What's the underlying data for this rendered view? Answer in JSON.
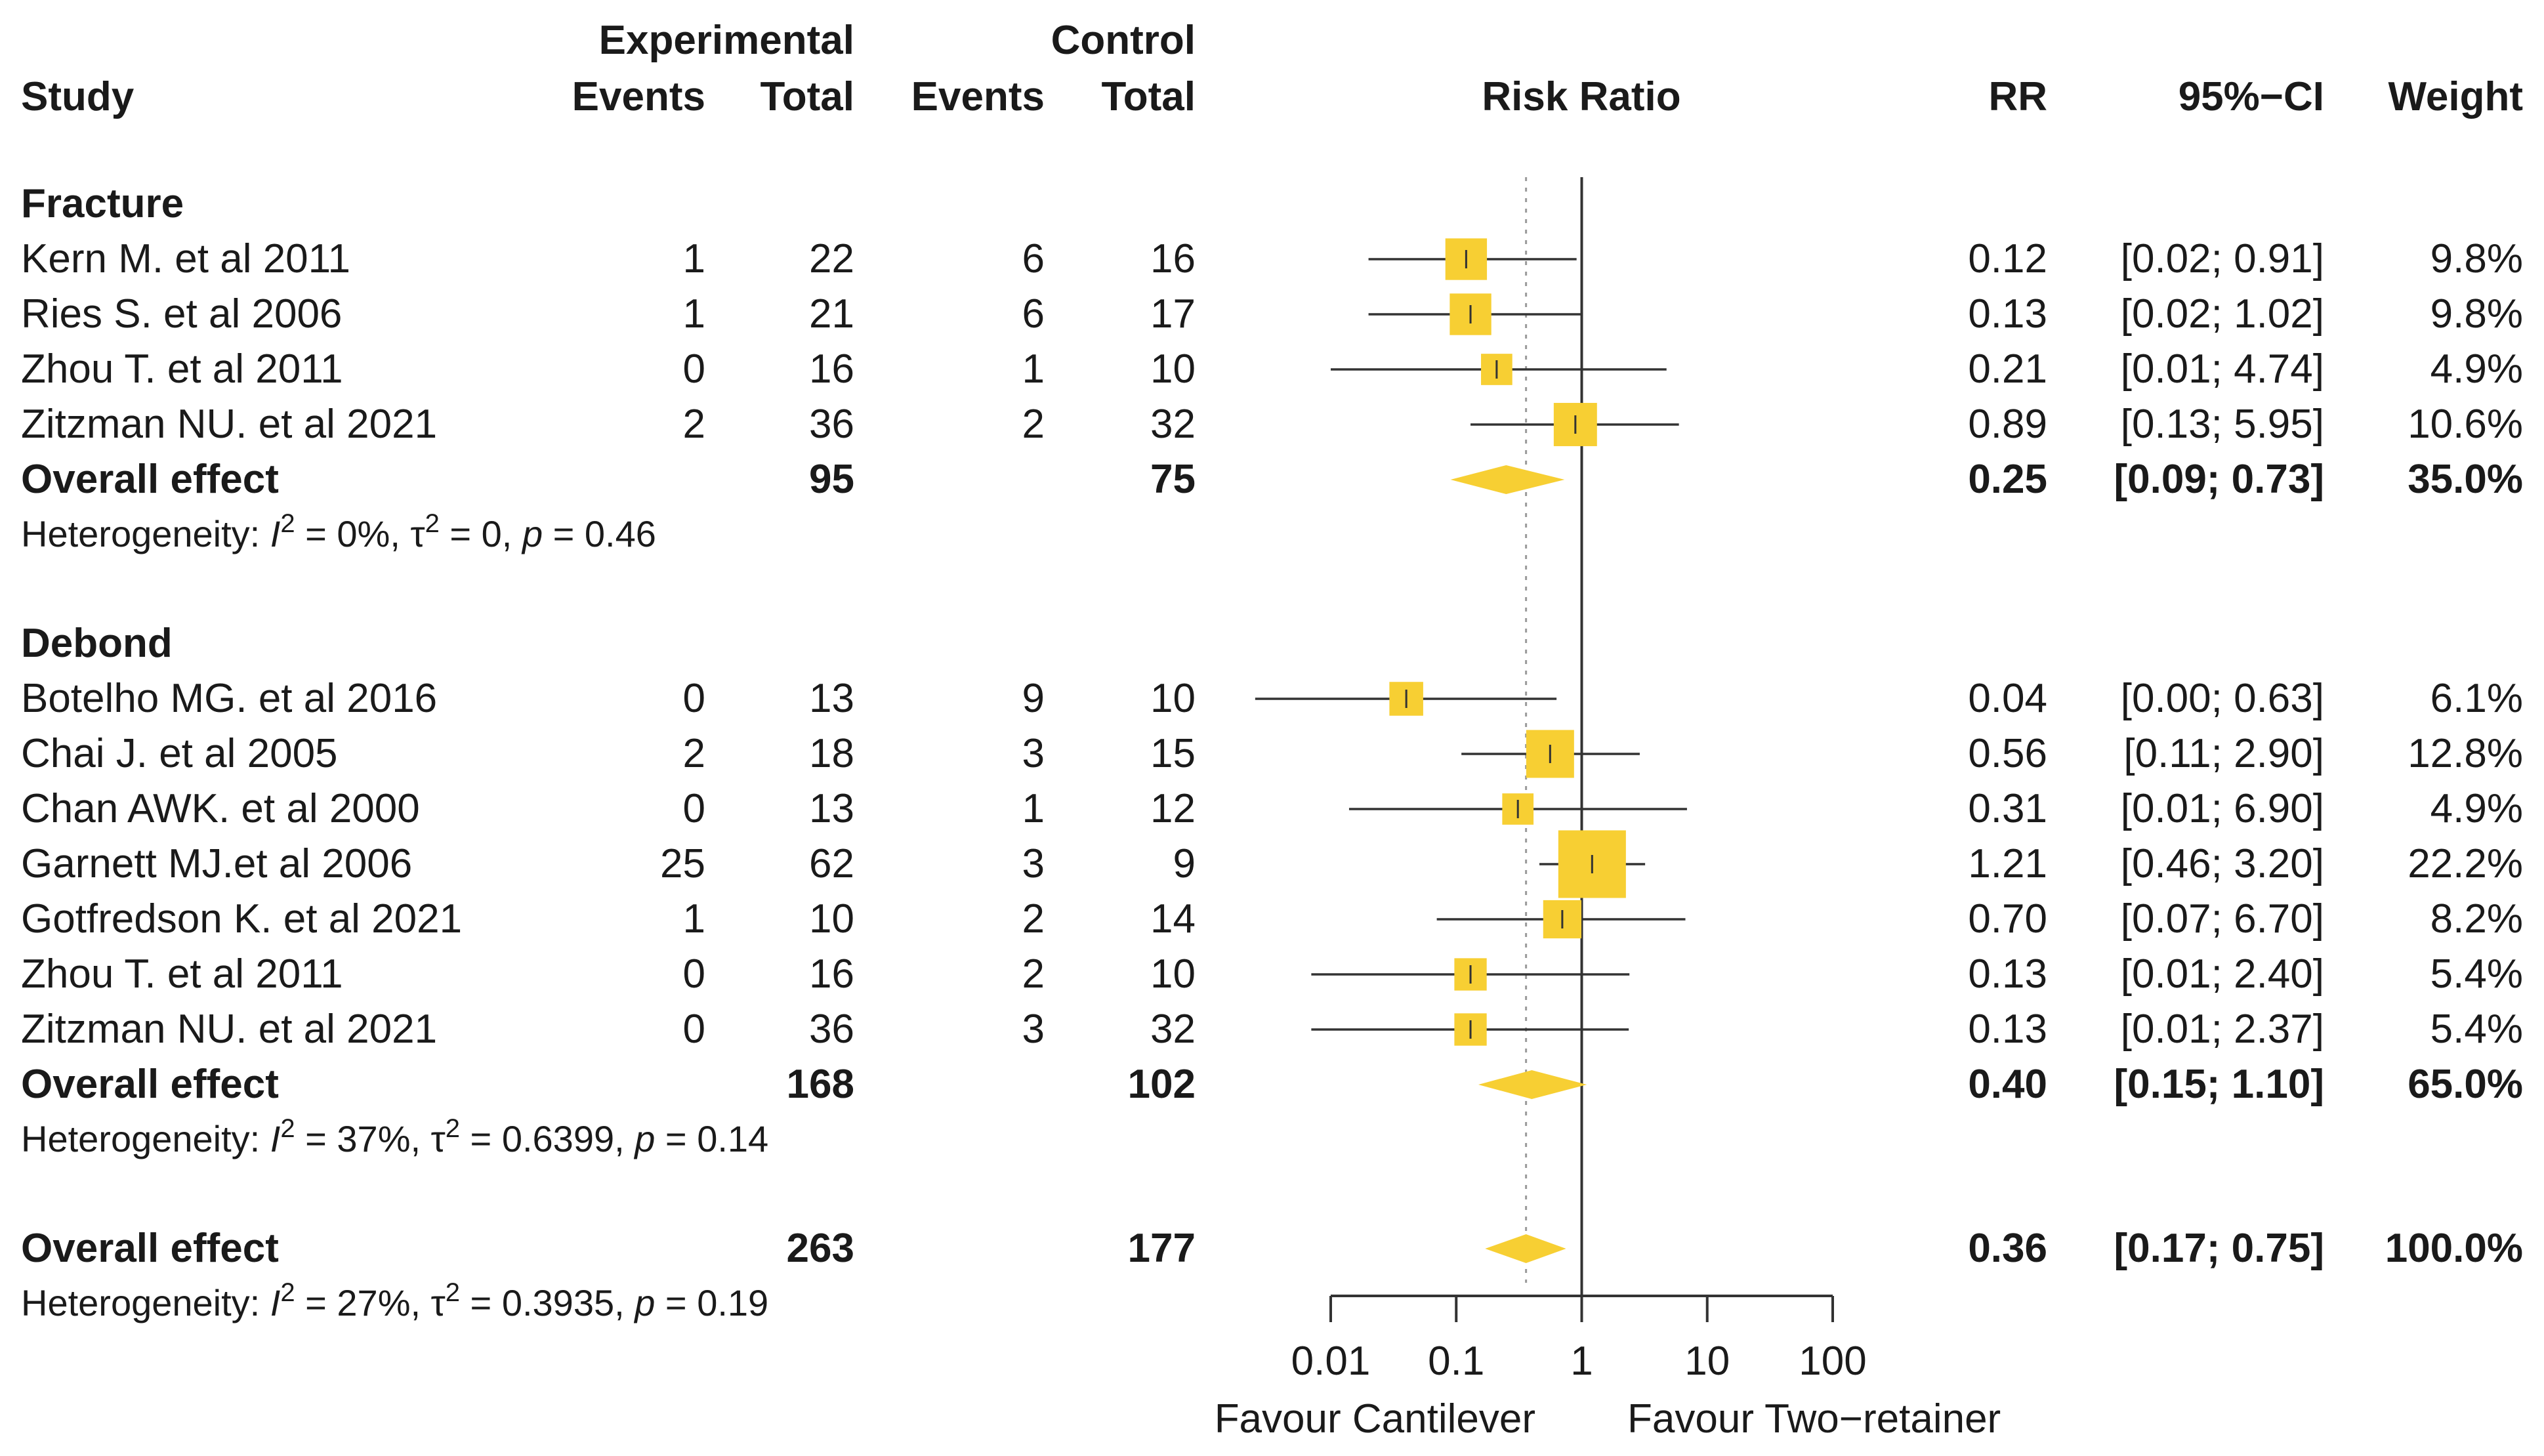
{
  "chart_data": {
    "type": "forest",
    "title": "",
    "xlabel": "Risk Ratio",
    "x_scale": "log",
    "xlim": [
      0.01,
      100
    ],
    "xticks": [
      "0.01",
      "0.1",
      "1",
      "10",
      "100"
    ],
    "null_line": 1,
    "overall_reference_line": 0.36,
    "favour_left": "Favour Cantilever",
    "favour_right": "Favour Two−retainer",
    "headers": {
      "study": "Study",
      "experimental": "Experimental",
      "control": "Control",
      "events": "Events",
      "total": "Total",
      "risk_ratio": "Risk Ratio",
      "rr": "RR",
      "ci": "95%−CI",
      "weight": "Weight"
    },
    "colors": {
      "marker": "#f7cf33",
      "line": "#333333",
      "ref_line": "#9a9a9a"
    },
    "subgroups": [
      {
        "name": "Fracture",
        "studies": [
          {
            "study": "Kern M. et al 2011",
            "e_events": "1",
            "e_total": "22",
            "c_events": "6",
            "c_total": "16",
            "rr": 0.12,
            "lower": 0.02,
            "upper": 0.91,
            "rr_text": "0.12",
            "ci_text": "[0.02; 0.91]",
            "weight_text": "9.8%",
            "weight": 9.8
          },
          {
            "study": "Ries S. et al 2006",
            "e_events": "1",
            "e_total": "21",
            "c_events": "6",
            "c_total": "17",
            "rr": 0.13,
            "lower": 0.02,
            "upper": 1.02,
            "rr_text": "0.13",
            "ci_text": "[0.02; 1.02]",
            "weight_text": "9.8%",
            "weight": 9.8
          },
          {
            "study": "Zhou T. et al 2011",
            "e_events": "0",
            "e_total": "16",
            "c_events": "1",
            "c_total": "10",
            "rr": 0.21,
            "lower": 0.01,
            "upper": 4.74,
            "rr_text": "0.21",
            "ci_text": "[0.01; 4.74]",
            "weight_text": "4.9%",
            "weight": 4.9
          },
          {
            "study": "Zitzman NU. et al 2021",
            "e_events": "2",
            "e_total": "36",
            "c_events": "2",
            "c_total": "32",
            "rr": 0.89,
            "lower": 0.13,
            "upper": 5.95,
            "rr_text": "0.89",
            "ci_text": "[0.13; 5.95]",
            "weight_text": "10.6%",
            "weight": 10.6
          }
        ],
        "overall": {
          "label": "Overall effect",
          "e_total": "95",
          "c_total": "75",
          "rr": 0.25,
          "lower": 0.09,
          "upper": 0.73,
          "rr_text": "0.25",
          "ci_text": "[0.09; 0.73]",
          "weight_text": "35.0%"
        },
        "heterogeneity": {
          "prefix": "Heterogeneity: ",
          "i2_symbol": "I",
          "i2": " = 0%, ",
          "tau_symbol": "τ",
          "tau2": " = 0, ",
          "p_symbol": "p",
          "p": " = 0.46",
          "sup": "2"
        }
      },
      {
        "name": "Debond",
        "studies": [
          {
            "study": "Botelho MG. et al 2016",
            "e_events": "0",
            "e_total": "13",
            "c_events": "9",
            "c_total": "10",
            "rr": 0.04,
            "lower": 0.0025,
            "upper": 0.63,
            "rr_text": "0.04",
            "ci_text": "[0.00; 0.63]",
            "weight_text": "6.1%",
            "weight": 6.1
          },
          {
            "study": "Chai J. et al 2005",
            "e_events": "2",
            "e_total": "18",
            "c_events": "3",
            "c_total": "15",
            "rr": 0.56,
            "lower": 0.11,
            "upper": 2.9,
            "rr_text": "0.56",
            "ci_text": "[0.11; 2.90]",
            "weight_text": "12.8%",
            "weight": 12.8
          },
          {
            "study": "Chan AWK. et al 2000",
            "e_events": "0",
            "e_total": "13",
            "c_events": "1",
            "c_total": "12",
            "rr": 0.31,
            "lower": 0.014,
            "upper": 6.9,
            "rr_text": "0.31",
            "ci_text": "[0.01; 6.90]",
            "weight_text": "4.9%",
            "weight": 4.9
          },
          {
            "study": "Garnett MJ.et al 2006",
            "e_events": "25",
            "e_total": "62",
            "c_events": "3",
            "c_total": "9",
            "rr": 1.21,
            "lower": 0.46,
            "upper": 3.2,
            "rr_text": "1.21",
            "ci_text": "[0.46; 3.20]",
            "weight_text": "22.2%",
            "weight": 22.2
          },
          {
            "study": "Gotfredson K. et al 2021",
            "e_events": "1",
            "e_total": "10",
            "c_events": "2",
            "c_total": "14",
            "rr": 0.7,
            "lower": 0.07,
            "upper": 6.7,
            "rr_text": "0.70",
            "ci_text": "[0.07; 6.70]",
            "weight_text": "8.2%",
            "weight": 8.2
          },
          {
            "study": "Zhou T. et al 2011",
            "e_events": "0",
            "e_total": "16",
            "c_events": "2",
            "c_total": "10",
            "rr": 0.13,
            "lower": 0.007,
            "upper": 2.4,
            "rr_text": "0.13",
            "ci_text": "[0.01; 2.40]",
            "weight_text": "5.4%",
            "weight": 5.4
          },
          {
            "study": "Zitzman NU. et al 2021",
            "e_events": "0",
            "e_total": "36",
            "c_events": "3",
            "c_total": "32",
            "rr": 0.13,
            "lower": 0.007,
            "upper": 2.37,
            "rr_text": "0.13",
            "ci_text": "[0.01; 2.37]",
            "weight_text": "5.4%",
            "weight": 5.4
          }
        ],
        "overall": {
          "label": "Overall effect",
          "e_total": "168",
          "c_total": "102",
          "rr": 0.4,
          "lower": 0.15,
          "upper": 1.1,
          "rr_text": "0.40",
          "ci_text": "[0.15; 1.10]",
          "weight_text": "65.0%"
        },
        "heterogeneity": {
          "prefix": "Heterogeneity: ",
          "i2_symbol": "I",
          "i2": " = 37%, ",
          "tau_symbol": "τ",
          "tau2": " = 0.6399, ",
          "p_symbol": "p",
          "p": " = 0.14",
          "sup": "2"
        }
      }
    ],
    "overall": {
      "label": "Overall effect",
      "e_total": "263",
      "c_total": "177",
      "rr": 0.36,
      "lower": 0.17,
      "upper": 0.75,
      "rr_text": "0.36",
      "ci_text": "[0.17; 0.75]",
      "weight_text": "100.0%"
    },
    "overall_heterogeneity": {
      "prefix": "Heterogeneity: ",
      "i2_symbol": "I",
      "i2": " = 27%, ",
      "tau_symbol": "τ",
      "tau2": " = 0.3935, ",
      "p_symbol": "p",
      "p": " = 0.19",
      "sup": "2"
    }
  }
}
